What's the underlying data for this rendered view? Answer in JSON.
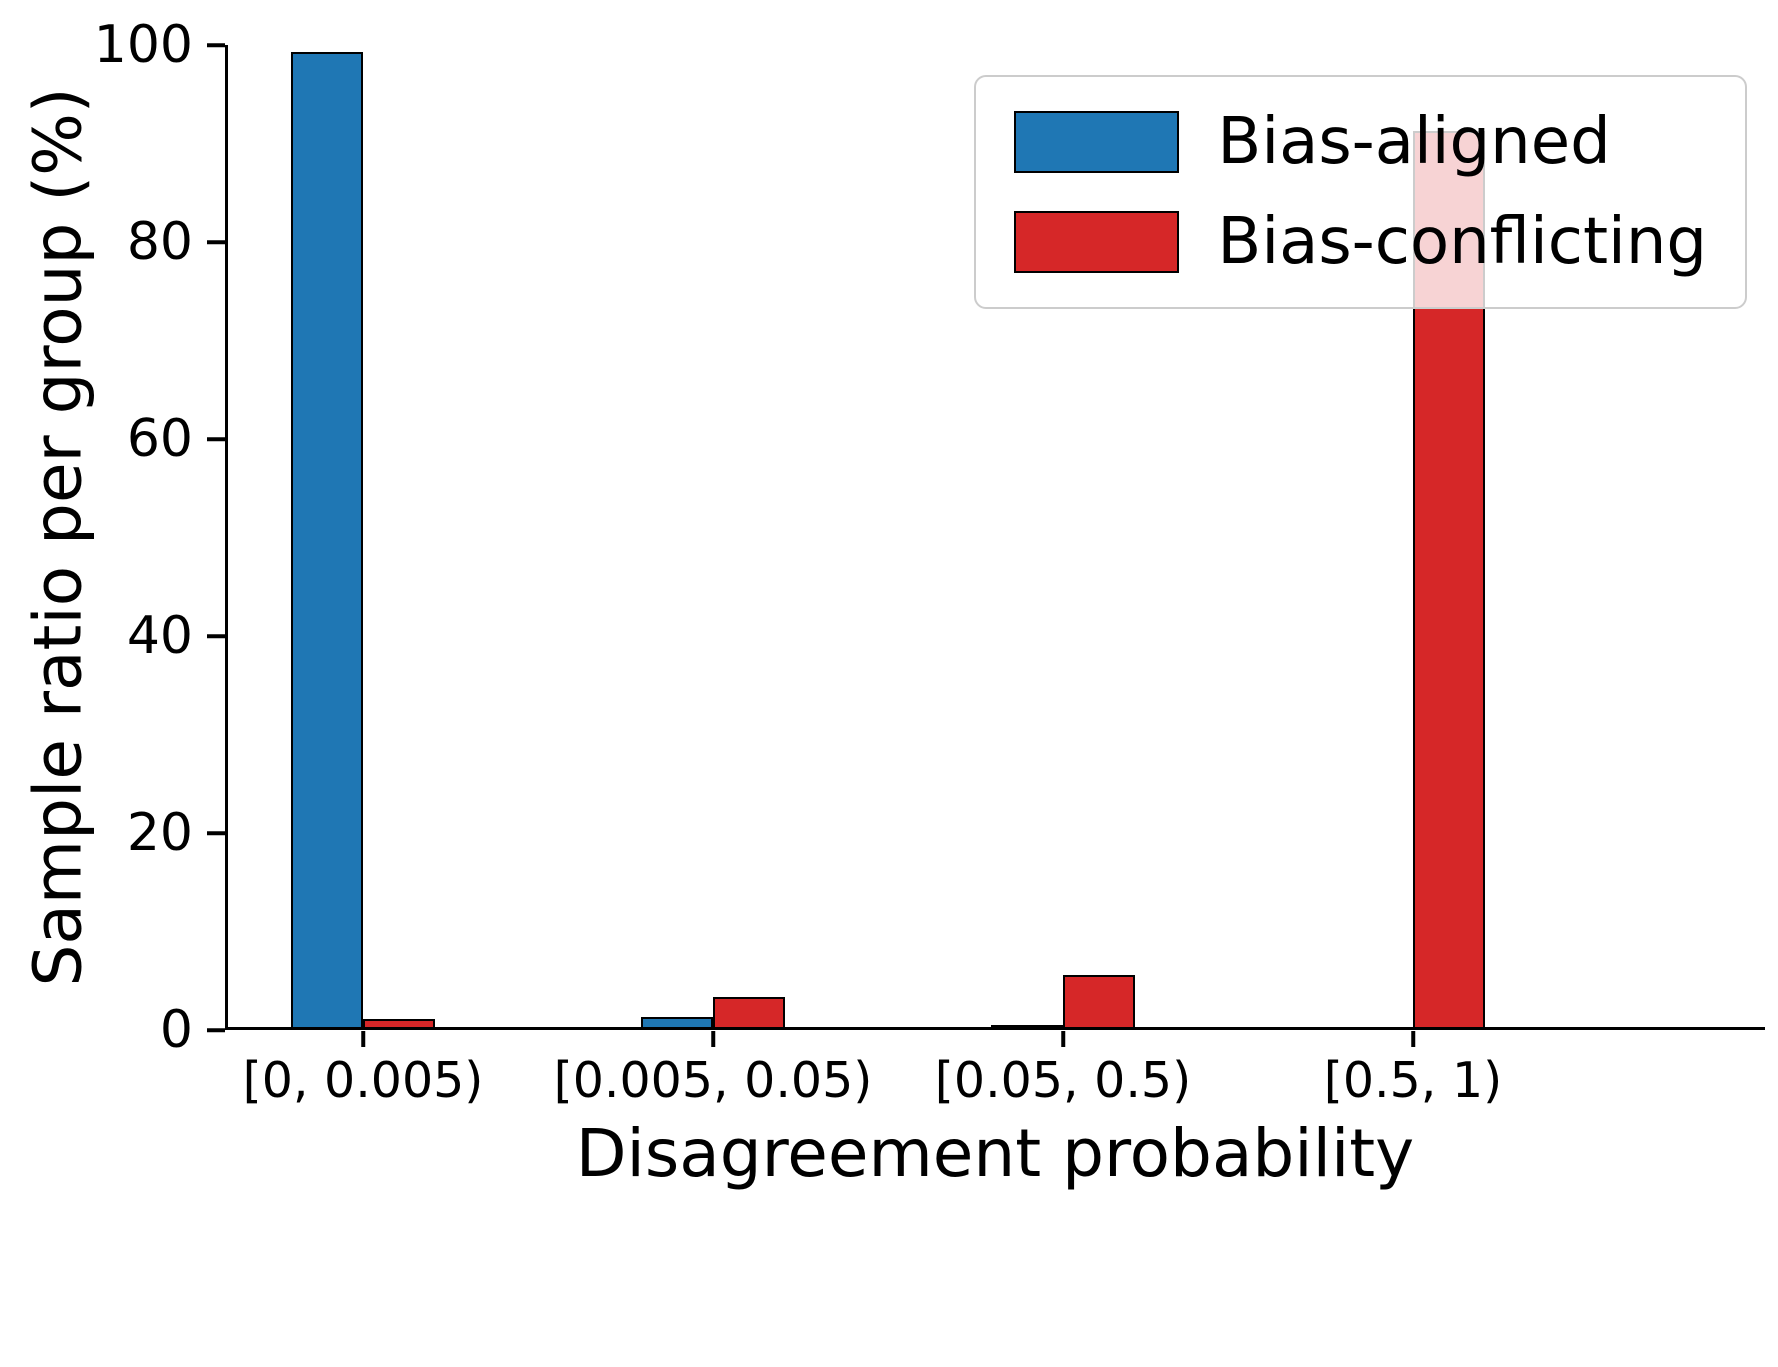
{
  "chart_data": {
    "type": "bar",
    "title": "",
    "xlabel": "Disagreement probability",
    "ylabel": "Sample ratio per group (%)",
    "categories": [
      "[0, 0.005)",
      "[0.005, 0.05)",
      "[0.05, 0.5)",
      "[0.5, 1)"
    ],
    "series": [
      {
        "name": "Bias-aligned",
        "color": "#1f77b4",
        "values": [
          99,
          1,
          0.2,
          0
        ]
      },
      {
        "name": "Bias-conflicting",
        "color": "#d62728",
        "values": [
          0.8,
          3,
          5.3,
          91
        ]
      }
    ],
    "ylim": [
      0,
      100
    ],
    "yticks": [
      0,
      20,
      40,
      60,
      80,
      100
    ],
    "grid": false,
    "legend_position": "upper right",
    "bar_edge_color": "#000000",
    "legend_background": "rgba(255,255,255,0.8)"
  }
}
